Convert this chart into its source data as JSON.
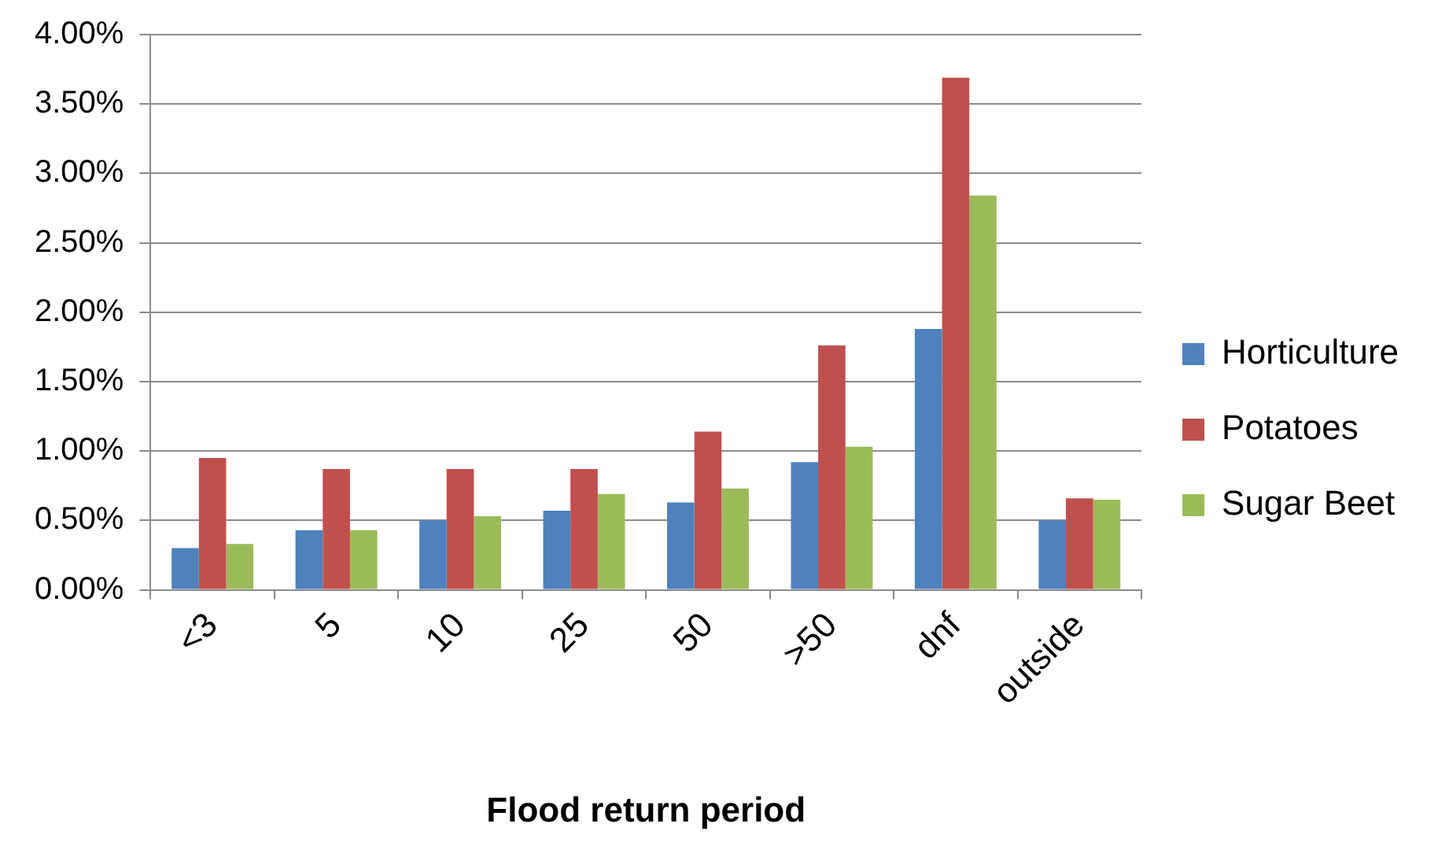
{
  "chart_data": {
    "type": "bar",
    "xlabel": "Flood return period",
    "categories": [
      "<3",
      "5",
      "10",
      "25",
      "50",
      ">50",
      "dnf",
      "outside"
    ],
    "series": [
      {
        "name": "Horticulture",
        "color": "#4f81bd",
        "values": [
          0.3,
          0.43,
          0.5,
          0.57,
          0.63,
          0.92,
          1.88,
          0.5
        ]
      },
      {
        "name": "Potatoes",
        "color": "#c0504d",
        "values": [
          0.95,
          0.87,
          0.87,
          0.87,
          1.14,
          1.76,
          3.69,
          0.66
        ]
      },
      {
        "name": "Sugar Beet",
        "color": "#9bbb59",
        "values": [
          0.33,
          0.43,
          0.53,
          0.69,
          0.73,
          1.03,
          2.84,
          0.65
        ]
      }
    ],
    "ylim": [
      0,
      4
    ],
    "yticks": [
      {
        "value": 0,
        "label": "0.00%"
      },
      {
        "value": 0.5,
        "label": "0.50%"
      },
      {
        "value": 1,
        "label": "1.00%"
      },
      {
        "value": 1.5,
        "label": "1.50%"
      },
      {
        "value": 2,
        "label": "2.00%"
      },
      {
        "value": 2.5,
        "label": "2.50%"
      },
      {
        "value": 3,
        "label": "3.00%"
      },
      {
        "value": 3.5,
        "label": "3.50%"
      },
      {
        "value": 4,
        "label": "4.00%"
      }
    ],
    "grid": "y",
    "legend": "right"
  }
}
